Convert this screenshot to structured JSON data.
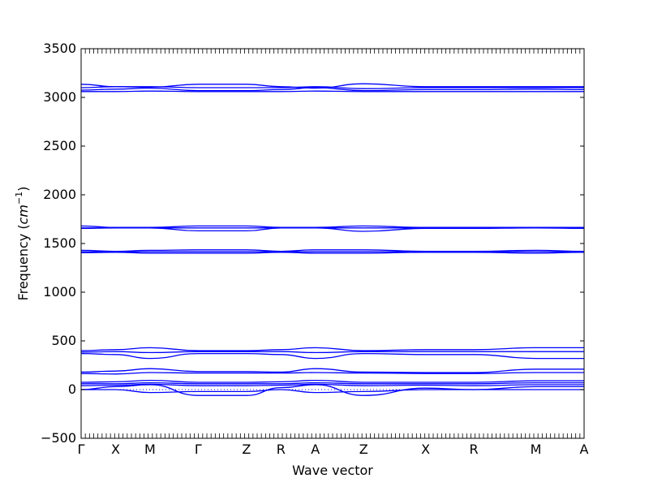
{
  "chart_data": {
    "type": "line",
    "title": "",
    "xlabel": "Wave vector",
    "ylabel": "Frequency",
    "ylabel_unit": "cm",
    "ylabel_unit_exp": "−1",
    "ylim": [
      -500,
      3500
    ],
    "yticks": [
      -500,
      0,
      500,
      1000,
      1500,
      2000,
      2500,
      3000,
      3500
    ],
    "grid": false,
    "legend": "none",
    "line_color": "#0000ff",
    "x_points": [
      {
        "label": "Γ",
        "x": 0
      },
      {
        "label": "X",
        "x": 0.5
      },
      {
        "label": "M",
        "x": 1.0
      },
      {
        "label": "Γ",
        "x": 1.7
      },
      {
        "label": "Z",
        "x": 2.4
      },
      {
        "label": "R",
        "x": 2.9
      },
      {
        "label": "A",
        "x": 3.4
      },
      {
        "label": "Z",
        "x": 4.1
      },
      {
        "label": "X",
        "x": 5.0
      },
      {
        "label": "R",
        "x": 5.7
      },
      {
        "label": "M",
        "x": 6.6
      },
      {
        "label": "A",
        "x": 7.3
      }
    ],
    "x_range": [
      0,
      7.3
    ],
    "series": [
      {
        "values": [
          3135,
          3110,
          3105,
          3135,
          3135,
          3110,
          3095,
          3140,
          3110,
          3110,
          3110,
          3110
        ]
      },
      {
        "values": [
          3100,
          3110,
          3110,
          3100,
          3100,
          3100,
          3110,
          3090,
          3100,
          3100,
          3100,
          3100
        ]
      },
      {
        "values": [
          3075,
          3085,
          3095,
          3070,
          3070,
          3080,
          3100,
          3070,
          3080,
          3080,
          3085,
          3080
        ]
      },
      {
        "values": [
          3060,
          3060,
          3065,
          3060,
          3060,
          3060,
          3065,
          3060,
          3060,
          3060,
          3060,
          3060
        ]
      },
      {
        "values": [
          1680,
          1665,
          1665,
          1680,
          1680,
          1665,
          1665,
          1680,
          1665,
          1665,
          1665,
          1665
        ]
      },
      {
        "values": [
          1660,
          1660,
          1660,
          1660,
          1660,
          1660,
          1660,
          1660,
          1660,
          1660,
          1660,
          1660
        ]
      },
      {
        "values": [
          1655,
          1660,
          1660,
          1630,
          1630,
          1660,
          1660,
          1625,
          1655,
          1655,
          1660,
          1655
        ]
      },
      {
        "values": [
          1430,
          1420,
          1430,
          1435,
          1435,
          1420,
          1435,
          1435,
          1420,
          1420,
          1430,
          1420
        ]
      },
      {
        "values": [
          1415,
          1415,
          1415,
          1415,
          1415,
          1415,
          1415,
          1415,
          1415,
          1415,
          1415,
          1415
        ]
      },
      {
        "values": [
          1405,
          1410,
          1400,
          1400,
          1400,
          1410,
          1400,
          1400,
          1410,
          1410,
          1400,
          1410
        ]
      },
      {
        "values": [
          400,
          410,
          430,
          400,
          400,
          410,
          430,
          400,
          410,
          410,
          430,
          430
        ]
      },
      {
        "values": [
          385,
          390,
          380,
          390,
          390,
          390,
          380,
          390,
          390,
          390,
          390,
          390
        ]
      },
      {
        "values": [
          370,
          360,
          320,
          370,
          370,
          360,
          320,
          370,
          360,
          360,
          320,
          320
        ]
      },
      {
        "values": [
          180,
          190,
          215,
          185,
          185,
          180,
          215,
          180,
          175,
          175,
          210,
          210
        ]
      },
      {
        "values": [
          165,
          160,
          175,
          170,
          170,
          170,
          175,
          170,
          165,
          165,
          175,
          175
        ]
      },
      {
        "values": [
          75,
          80,
          95,
          75,
          75,
          80,
          95,
          75,
          75,
          75,
          90,
          90
        ]
      },
      {
        "values": [
          60,
          60,
          70,
          60,
          60,
          60,
          70,
          60,
          60,
          60,
          70,
          70
        ]
      },
      {
        "values": [
          40,
          45,
          55,
          40,
          40,
          45,
          55,
          40,
          45,
          40,
          50,
          50
        ]
      },
      {
        "values": [
          0,
          30,
          50,
          -60,
          -60,
          20,
          50,
          -60,
          15,
          0,
          30,
          30
        ]
      },
      {
        "values": [
          0,
          0,
          -30,
          -20,
          -20,
          0,
          -30,
          -20,
          0,
          0,
          0,
          0
        ]
      }
    ],
    "dotted_zero_line": true
  }
}
